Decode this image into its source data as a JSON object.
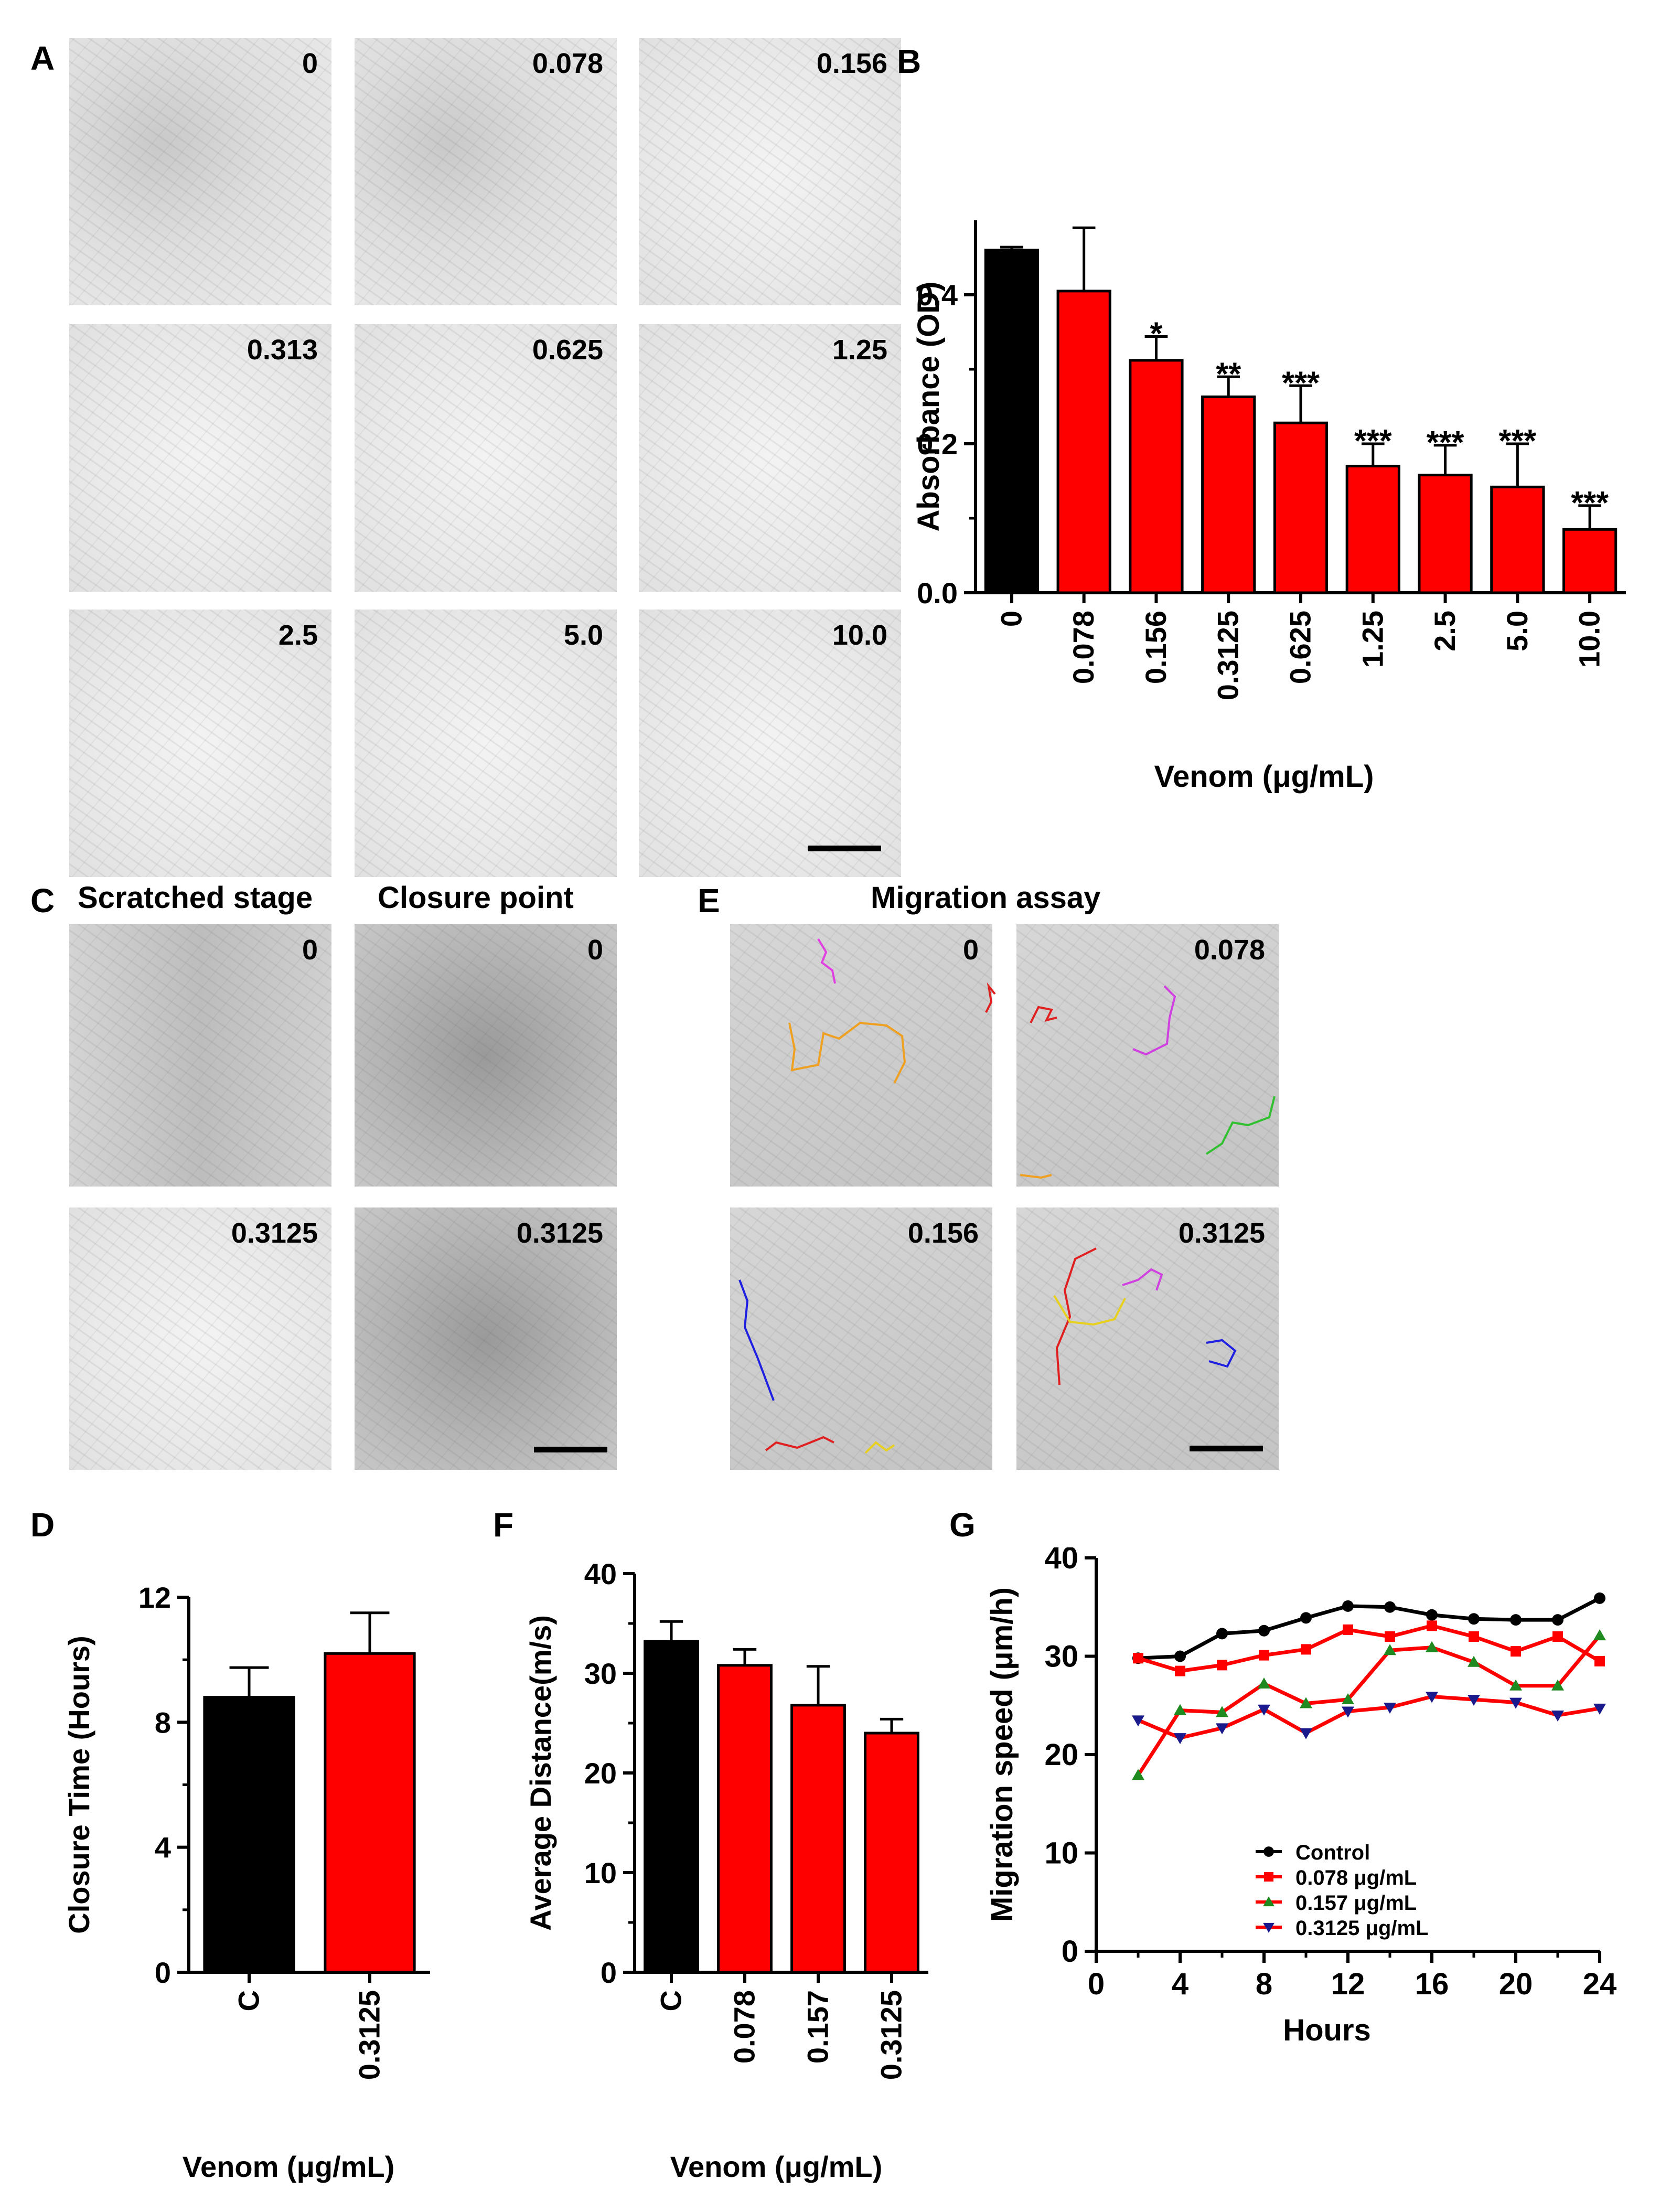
{
  "panels": {
    "A": {
      "label": "A",
      "tiles": [
        "0",
        "0.078",
        "0.156",
        "0.313",
        "0.625",
        "1.25",
        "2.5",
        "5.0",
        "10.0"
      ]
    },
    "B": {
      "label": "B"
    },
    "C": {
      "label": "C",
      "title_left": "Scratched stage",
      "title_right": "Closure point",
      "tiles": [
        "0",
        "0",
        "0.3125",
        "0.3125"
      ]
    },
    "D": {
      "label": "D"
    },
    "E": {
      "label": "E",
      "title": "Migration assay",
      "tiles": [
        "0",
        "0.078",
        "0.156",
        "0.3125"
      ]
    },
    "F": {
      "label": "F"
    },
    "G": {
      "label": "G"
    }
  },
  "colors": {
    "black": "#000000",
    "red": "#ff0000",
    "green": "#1f8a1f",
    "navy": "#1a1a8c"
  },
  "chart_data": [
    {
      "id": "B",
      "type": "bar",
      "categories": [
        "0",
        "0.078",
        "0.156",
        "0.3125",
        "0.625",
        "1.25",
        "2.5",
        "5.0",
        "10.0"
      ],
      "values": [
        0.46,
        0.405,
        0.312,
        0.263,
        0.228,
        0.17,
        0.158,
        0.142,
        0.085
      ],
      "errors": [
        0.004,
        0.085,
        0.032,
        0.027,
        0.05,
        0.03,
        0.04,
        0.058,
        0.032
      ],
      "colors": [
        "#000000",
        "#ff0000",
        "#ff0000",
        "#ff0000",
        "#ff0000",
        "#ff0000",
        "#ff0000",
        "#ff0000",
        "#ff0000"
      ],
      "significance": [
        "",
        "",
        "*",
        "**",
        "***",
        "***",
        "***",
        "***",
        "***"
      ],
      "ylabel": "Absorbance (OD)",
      "xlabel": "Venom (μg/mL)",
      "ylim": [
        0,
        0.5
      ],
      "yticks": [
        "0.0",
        "0.2",
        "0.4"
      ]
    },
    {
      "id": "D",
      "type": "bar",
      "categories": [
        "C",
        "0.3125"
      ],
      "values": [
        8.8,
        10.2
      ],
      "errors": [
        0.95,
        1.3
      ],
      "colors": [
        "#000000",
        "#ff0000"
      ],
      "ylabel": "Closure Time (Hours)",
      "xlabel": "Venom (μg/mL)",
      "ylim": [
        0,
        12
      ],
      "yticks": [
        "0",
        "4",
        "8",
        "12"
      ]
    },
    {
      "id": "F",
      "type": "bar",
      "categories": [
        "C",
        "0.078",
        "0.157",
        "0.3125"
      ],
      "values": [
        33.2,
        30.8,
        26.8,
        24.0
      ],
      "errors": [
        2.0,
        1.6,
        3.9,
        1.4
      ],
      "colors": [
        "#000000",
        "#ff0000",
        "#ff0000",
        "#ff0000"
      ],
      "ylabel": "Average Distance(m/s)",
      "xlabel": "Venom (μg/mL)",
      "ylim": [
        0,
        40
      ],
      "yticks": [
        "0",
        "10",
        "20",
        "30",
        "40"
      ]
    },
    {
      "id": "G",
      "type": "line",
      "xlabel": "Hours",
      "ylabel": "Migration speed (μm/h)",
      "xlim": [
        0,
        24
      ],
      "ylim": [
        0,
        40
      ],
      "xticks": [
        "0",
        "4",
        "8",
        "12",
        "16",
        "20",
        "24"
      ],
      "yticks": [
        "0",
        "10",
        "20",
        "30",
        "40"
      ],
      "x": [
        2,
        4,
        6,
        8,
        10,
        12,
        14,
        16,
        18,
        20,
        22,
        24
      ],
      "series": [
        {
          "name": "Control",
          "color": "#000000",
          "marker": "circle",
          "values": [
            29.8,
            30.0,
            32.3,
            32.6,
            33.9,
            35.1,
            35.0,
            34.2,
            33.8,
            33.7,
            33.7,
            35.9
          ]
        },
        {
          "name": "0.078 μg/mL",
          "color": "#ff0000",
          "marker": "square",
          "values": [
            29.8,
            28.5,
            29.1,
            30.1,
            30.7,
            32.7,
            32.0,
            33.1,
            32.0,
            30.5,
            32.0,
            29.5
          ]
        },
        {
          "name": "0.157 μg/mL",
          "color": "#ff0000",
          "marker": "triangle-up",
          "marker_color": "#1f8a1f",
          "values": [
            17.9,
            24.5,
            24.3,
            27.2,
            25.2,
            25.6,
            30.6,
            30.9,
            29.4,
            27.0,
            27.0,
            32.1
          ]
        },
        {
          "name": "0.3125 μg/mL",
          "color": "#ff0000",
          "marker": "triangle-down",
          "marker_color": "#1a1a8c",
          "values": [
            23.5,
            21.7,
            22.7,
            24.6,
            22.2,
            24.4,
            24.8,
            25.9,
            25.6,
            25.3,
            24.0,
            24.7
          ]
        }
      ]
    }
  ]
}
